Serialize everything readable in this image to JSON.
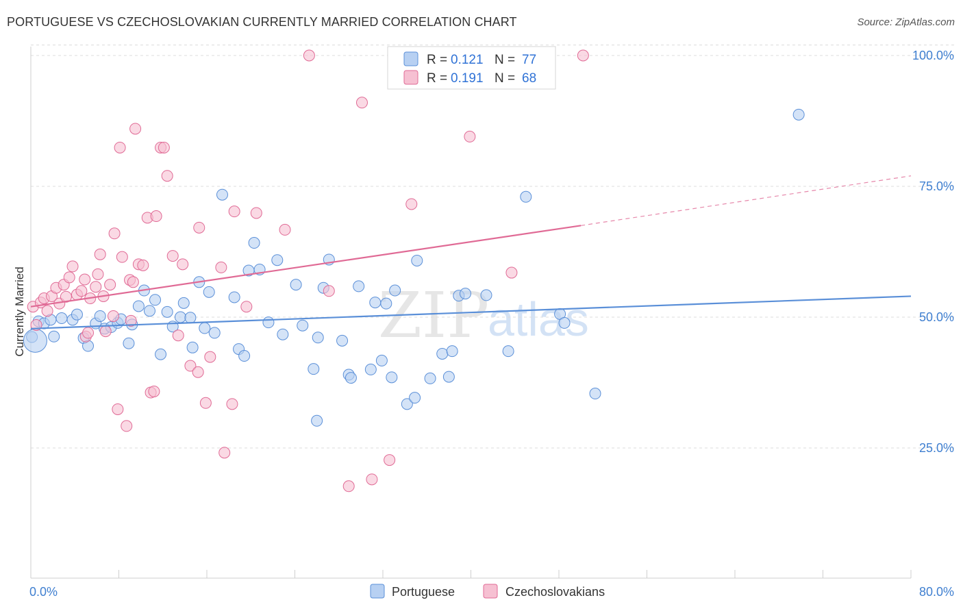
{
  "header": {
    "title": "PORTUGUESE VS CZECHOSLOVAKIAN CURRENTLY MARRIED CORRELATION CHART",
    "source": "Source: ZipAtlas.com"
  },
  "watermark": {
    "part1": "ZIP",
    "part2": "atlas"
  },
  "colors": {
    "blue": "#5a8fd8",
    "blue_fill": "#b7d0f2",
    "pink": "#e06a95",
    "pink_fill": "#f6c0d2",
    "tick": "#3f7fd0"
  },
  "chart_data": {
    "type": "scatter",
    "title": "PORTUGUESE VS CZECHOSLOVAKIAN CURRENTLY MARRIED CORRELATION CHART",
    "xlabel": "",
    "ylabel": "Currently Married",
    "xlim": [
      0,
      80
    ],
    "ylim": [
      0,
      102
    ],
    "x_tick_labels": [
      "0.0%",
      "80.0%"
    ],
    "y_ticks": [
      25,
      50,
      75,
      100
    ],
    "y_tick_labels": [
      "25.0%",
      "50.0%",
      "75.0%",
      "100.0%"
    ],
    "grid": "horizontal dashed",
    "legend": {
      "placement": "top-center",
      "rows": [
        {
          "r_label": "R = ",
          "r_value": "0.121",
          "n_label": "N = ",
          "n_value": "77"
        },
        {
          "r_label": "R = ",
          "r_value": "0.191",
          "n_label": "N = ",
          "n_value": "68"
        }
      ]
    },
    "series": [
      {
        "name": "Portuguese",
        "color": "#5a8fd8",
        "trend": {
          "x0": 0,
          "y0": 47.8,
          "x1": 80,
          "y1": 54.0
        },
        "points": [
          [
            0.1,
            46.2
          ],
          [
            0.4,
            45.5
          ],
          [
            0.7,
            49.2
          ],
          [
            1.2,
            48.8
          ],
          [
            1.8,
            49.5
          ],
          [
            2.1,
            46.3
          ],
          [
            2.8,
            49.8
          ],
          [
            3.8,
            49.5
          ],
          [
            4.2,
            50.5
          ],
          [
            4.8,
            46.0
          ],
          [
            5.2,
            44.5
          ],
          [
            5.9,
            48.8
          ],
          [
            6.3,
            50.2
          ],
          [
            6.7,
            47.8
          ],
          [
            7.3,
            48.1
          ],
          [
            7.9,
            48.9
          ],
          [
            8.2,
            49.6
          ],
          [
            8.9,
            45.0
          ],
          [
            9.2,
            48.6
          ],
          [
            9.8,
            52.1
          ],
          [
            10.3,
            55.1
          ],
          [
            10.8,
            51.2
          ],
          [
            11.3,
            53.3
          ],
          [
            11.8,
            42.9
          ],
          [
            12.4,
            51.0
          ],
          [
            12.9,
            48.2
          ],
          [
            13.6,
            50.0
          ],
          [
            13.9,
            52.7
          ],
          [
            14.5,
            49.9
          ],
          [
            14.7,
            44.2
          ],
          [
            15.3,
            56.7
          ],
          [
            15.8,
            47.9
          ],
          [
            16.2,
            54.8
          ],
          [
            16.7,
            47.0
          ],
          [
            17.4,
            73.4
          ],
          [
            18.5,
            53.8
          ],
          [
            18.9,
            43.9
          ],
          [
            19.4,
            42.6
          ],
          [
            19.8,
            58.9
          ],
          [
            20.3,
            64.2
          ],
          [
            20.8,
            59.1
          ],
          [
            21.6,
            49.0
          ],
          [
            22.4,
            60.9
          ],
          [
            22.9,
            46.7
          ],
          [
            24.1,
            56.2
          ],
          [
            24.7,
            48.4
          ],
          [
            25.7,
            40.1
          ],
          [
            26.1,
            46.1
          ],
          [
            26.6,
            55.6
          ],
          [
            27.1,
            61.0
          ],
          [
            28.3,
            45.5
          ],
          [
            28.9,
            39.0
          ],
          [
            29.1,
            38.4
          ],
          [
            29.8,
            55.9
          ],
          [
            30.9,
            40.0
          ],
          [
            31.3,
            52.8
          ],
          [
            31.9,
            41.7
          ],
          [
            32.3,
            52.6
          ],
          [
            32.8,
            38.5
          ],
          [
            33.1,
            55.1
          ],
          [
            34.2,
            33.4
          ],
          [
            34.9,
            34.6
          ],
          [
            35.1,
            60.8
          ],
          [
            36.3,
            38.3
          ],
          [
            37.4,
            43.0
          ],
          [
            38.0,
            38.6
          ],
          [
            38.3,
            43.5
          ],
          [
            38.9,
            54.1
          ],
          [
            39.5,
            54.5
          ],
          [
            41.4,
            54.2
          ],
          [
            43.4,
            43.5
          ],
          [
            45.0,
            73.0
          ],
          [
            48.1,
            50.6
          ],
          [
            48.5,
            48.9
          ],
          [
            51.3,
            35.4
          ],
          [
            69.8,
            88.7
          ],
          [
            26.0,
            30.2
          ]
        ]
      },
      {
        "name": "Czechoslovakians",
        "color": "#e06a95",
        "trend": {
          "x0": 0,
          "y0": 52.0,
          "x1": 50,
          "y1": 67.5,
          "dash_x1": 80,
          "dash_y1": 77.0
        },
        "points": [
          [
            0.2,
            52.0
          ],
          [
            0.5,
            48.5
          ],
          [
            0.9,
            52.8
          ],
          [
            1.2,
            53.6
          ],
          [
            1.5,
            51.2
          ],
          [
            1.9,
            54.0
          ],
          [
            2.3,
            55.6
          ],
          [
            2.6,
            52.6
          ],
          [
            3.0,
            56.2
          ],
          [
            3.2,
            53.9
          ],
          [
            3.5,
            57.6
          ],
          [
            3.8,
            59.7
          ],
          [
            4.2,
            54.3
          ],
          [
            4.6,
            55.0
          ],
          [
            4.9,
            57.2
          ],
          [
            5.0,
            46.3
          ],
          [
            5.2,
            47.0
          ],
          [
            5.4,
            53.6
          ],
          [
            5.9,
            55.8
          ],
          [
            6.1,
            58.2
          ],
          [
            6.3,
            62.0
          ],
          [
            6.8,
            47.3
          ],
          [
            7.2,
            56.2
          ],
          [
            7.5,
            50.2
          ],
          [
            7.6,
            66.0
          ],
          [
            7.9,
            32.4
          ],
          [
            8.1,
            82.4
          ],
          [
            8.3,
            61.5
          ],
          [
            8.7,
            29.2
          ],
          [
            9.0,
            57.1
          ],
          [
            9.3,
            56.7
          ],
          [
            9.5,
            86.0
          ],
          [
            9.8,
            60.1
          ],
          [
            10.2,
            59.9
          ],
          [
            10.6,
            69.0
          ],
          [
            10.9,
            35.6
          ],
          [
            11.2,
            35.8
          ],
          [
            11.4,
            69.3
          ],
          [
            11.8,
            82.4
          ],
          [
            12.1,
            82.4
          ],
          [
            12.4,
            77.0
          ],
          [
            12.9,
            61.7
          ],
          [
            13.4,
            46.5
          ],
          [
            13.8,
            60.1
          ],
          [
            14.5,
            40.7
          ],
          [
            15.2,
            39.5
          ],
          [
            15.3,
            67.1
          ],
          [
            15.9,
            33.6
          ],
          [
            16.3,
            42.4
          ],
          [
            17.3,
            59.5
          ],
          [
            17.6,
            24.1
          ],
          [
            18.3,
            33.4
          ],
          [
            18.5,
            70.2
          ],
          [
            19.6,
            52.0
          ],
          [
            20.5,
            69.9
          ],
          [
            23.1,
            66.7
          ],
          [
            25.3,
            100.0
          ],
          [
            27.1,
            55.0
          ],
          [
            28.9,
            17.7
          ],
          [
            30.1,
            91.0
          ],
          [
            31.0,
            19.0
          ],
          [
            32.6,
            22.7
          ],
          [
            34.6,
            71.6
          ],
          [
            39.9,
            84.5
          ],
          [
            43.7,
            58.5
          ],
          [
            50.2,
            100.0
          ],
          [
            6.6,
            54.0
          ],
          [
            9.1,
            49.3
          ]
        ]
      }
    ]
  },
  "bottom_legend": [
    "Portuguese",
    "Czechoslovakians"
  ]
}
